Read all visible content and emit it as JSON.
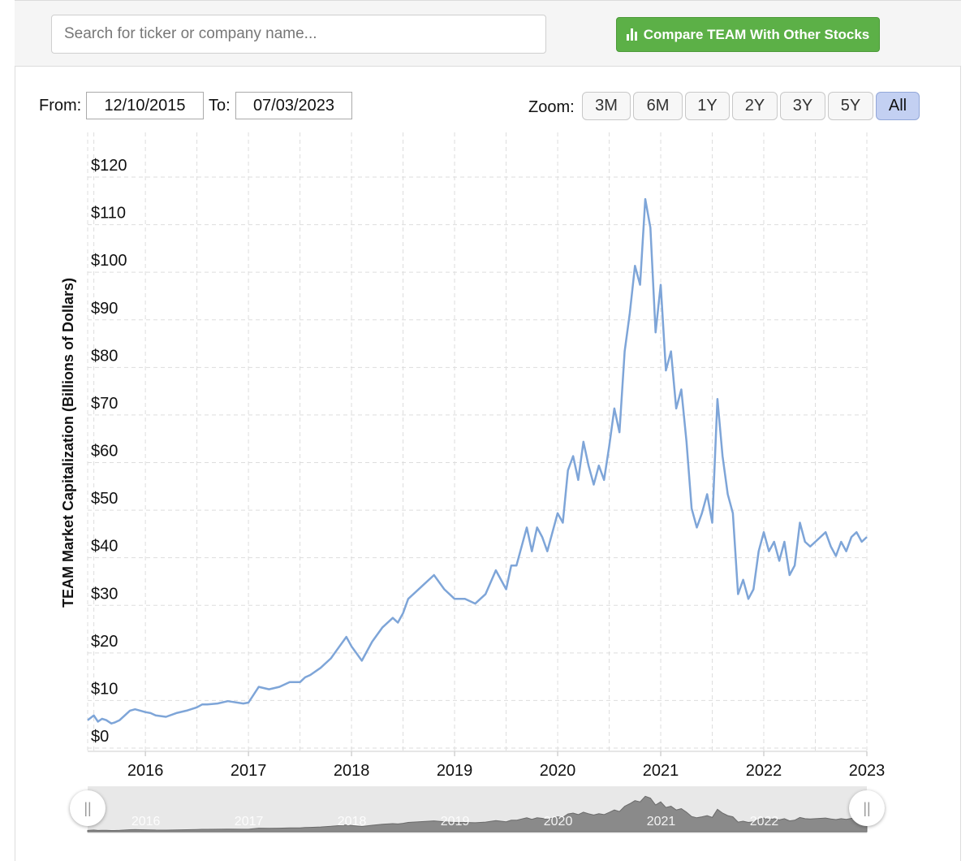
{
  "search": {
    "placeholder": "Search for ticker or company name..."
  },
  "compare_button": {
    "label": "Compare TEAM With Other Stocks",
    "color": "#5cb047"
  },
  "range": {
    "from_label": "From:",
    "from_value": "12/10/2015",
    "to_label": "To:",
    "to_value": "07/03/2023"
  },
  "zoom": {
    "label": "Zoom:",
    "options": [
      "3M",
      "6M",
      "1Y",
      "2Y",
      "3Y",
      "5Y",
      "All"
    ],
    "selected": "All"
  },
  "navigator": {
    "handle_left": "||",
    "handle_right": "||",
    "labels": [
      "2016",
      "2017",
      "2018",
      "2019",
      "2020",
      "2021",
      "2022"
    ]
  },
  "chart_data": {
    "type": "line",
    "title": "",
    "xlabel": "",
    "ylabel": "TEAM Market Capitalization (Billions of Dollars)",
    "ylim": [
      0,
      120
    ],
    "xlim": [
      2015.94,
      2023.5
    ],
    "y_ticks": [
      0,
      10,
      20,
      30,
      40,
      50,
      60,
      70,
      80,
      90,
      100,
      110,
      120
    ],
    "y_tick_labels": [
      "$0",
      "$10",
      "$20",
      "$30",
      "$40",
      "$50",
      "$60",
      "$70",
      "$80",
      "$90",
      "$100",
      "$110",
      "$120"
    ],
    "x_ticks": [
      2016.5,
      2017.5,
      2018.5,
      2019.5,
      2020.5,
      2021.5,
      2022.5,
      2023.5
    ],
    "x_tick_labels": [
      "2016",
      "2017",
      "2018",
      "2019",
      "2020",
      "2021",
      "2022",
      "2023"
    ],
    "grid": true,
    "line_color": "#7ea5d8",
    "series": [
      {
        "name": "TEAM Market Cap",
        "x": [
          2015.94,
          2016.0,
          2016.04,
          2016.08,
          2016.12,
          2016.17,
          2016.2,
          2016.25,
          2016.3,
          2016.35,
          2016.4,
          2016.45,
          2016.5,
          2016.55,
          2016.6,
          2016.7,
          2016.8,
          2016.9,
          2017.0,
          2017.05,
          2017.1,
          2017.2,
          2017.3,
          2017.45,
          2017.5,
          2017.6,
          2017.7,
          2017.8,
          2017.9,
          2018.0,
          2018.05,
          2018.1,
          2018.2,
          2018.3,
          2018.35,
          2018.45,
          2018.5,
          2018.6,
          2018.7,
          2018.8,
          2018.9,
          2018.95,
          2019.0,
          2019.05,
          2019.1,
          2019.2,
          2019.3,
          2019.4,
          2019.5,
          2019.6,
          2019.7,
          2019.8,
          2019.9,
          2020.0,
          2020.05,
          2020.1,
          2020.2,
          2020.25,
          2020.3,
          2020.35,
          2020.4,
          2020.5,
          2020.55,
          2020.6,
          2020.65,
          2020.7,
          2020.75,
          2020.8,
          2020.85,
          2020.9,
          2020.95,
          2021.0,
          2021.05,
          2021.1,
          2021.15,
          2021.2,
          2021.25,
          2021.3,
          2021.35,
          2021.4,
          2021.45,
          2021.5,
          2021.55,
          2021.6,
          2021.65,
          2021.7,
          2021.75,
          2021.8,
          2021.85,
          2021.9,
          2021.95,
          2022.0,
          2022.05,
          2022.1,
          2022.15,
          2022.2,
          2022.25,
          2022.3,
          2022.35,
          2022.4,
          2022.45,
          2022.5,
          2022.55,
          2022.6,
          2022.65,
          2022.7,
          2022.75,
          2022.8,
          2022.85,
          2022.9,
          2022.95,
          2023.0,
          2023.05,
          2023.1,
          2023.15,
          2023.2,
          2023.25,
          2023.3,
          2023.35,
          2023.4,
          2023.45,
          2023.5
        ],
        "values": [
          4.5,
          5.5,
          4.2,
          4.8,
          4.5,
          3.8,
          4.0,
          4.5,
          5.5,
          6.5,
          6.8,
          6.5,
          6.2,
          6.0,
          5.5,
          5.2,
          6.0,
          6.5,
          7.2,
          7.8,
          7.8,
          8.0,
          8.5,
          8.0,
          8.2,
          11.5,
          11.0,
          11.5,
          12.5,
          12.5,
          13.5,
          14.0,
          15.5,
          17.5,
          19.0,
          22.0,
          20.0,
          17.0,
          21.0,
          24.0,
          26.0,
          25.0,
          27.0,
          30.0,
          31.0,
          33.0,
          35.0,
          32.0,
          30.0,
          30.0,
          29.0,
          31.0,
          36.0,
          32.0,
          37.0,
          37.0,
          45.0,
          40.0,
          45.0,
          43.0,
          40.0,
          48.0,
          46.0,
          57.0,
          60.0,
          55.0,
          63.0,
          58.0,
          54.0,
          58.0,
          55.0,
          62.0,
          70.0,
          65.0,
          82.0,
          90.0,
          100.0,
          96.0,
          114.0,
          108.0,
          86.0,
          96.0,
          78.0,
          82.0,
          70.0,
          74.0,
          63.0,
          49.0,
          45.0,
          48.0,
          52.0,
          46.0,
          72.0,
          60.0,
          52.0,
          48.0,
          31.0,
          34.0,
          30.0,
          32.0,
          40.0,
          44.0,
          40.0,
          42.0,
          38.0,
          42.0,
          35.0,
          37.0,
          46.0,
          42.0,
          41.0,
          42.0,
          43.0,
          44.0,
          41.0,
          39.0,
          42.0,
          40.0,
          43.0,
          44.0,
          42.0,
          43.0
        ]
      }
    ]
  }
}
